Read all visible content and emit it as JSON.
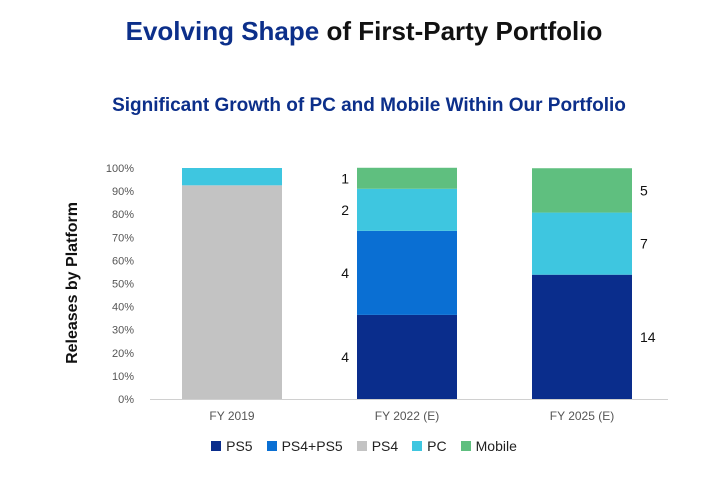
{
  "header": {
    "title_accent": "Evolving Shape",
    "title_rest": " of First-Party Portfolio"
  },
  "chart_data": {
    "type": "bar",
    "stacked": true,
    "title": "Significant Growth of PC and Mobile Within Our Portfolio",
    "ylabel": "Releases by Platform",
    "xlabel": "",
    "ylim": [
      0,
      100
    ],
    "yticks": [
      "0%",
      "10%",
      "20%",
      "30%",
      "40%",
      "50%",
      "60%",
      "70%",
      "80%",
      "90%",
      "100%"
    ],
    "categories": [
      "FY 2019",
      "FY 2022 (E)",
      "FY 2025 (E)"
    ],
    "legend_position": "bottom",
    "grid": false,
    "series": [
      {
        "name": "PS5",
        "color": "#0a2d8c",
        "values": [
          0,
          36.4,
          53.8
        ],
        "labels": [
          "",
          "4",
          "14"
        ]
      },
      {
        "name": "PS4+PS5",
        "color": "#0a6fd3",
        "values": [
          0,
          36.4,
          0
        ],
        "labels": [
          "",
          "4",
          ""
        ]
      },
      {
        "name": "PS4",
        "color": "#c3c3c3",
        "values": [
          92.5,
          0,
          0
        ],
        "labels": [
          "",
          "",
          ""
        ]
      },
      {
        "name": "PC",
        "color": "#3ec6e0",
        "values": [
          7.5,
          18.2,
          26.9
        ],
        "labels": [
          "",
          "2",
          "7"
        ]
      },
      {
        "name": "Mobile",
        "color": "#5fbf7f",
        "values": [
          0,
          9.1,
          19.2
        ],
        "labels": [
          "",
          "1",
          "5"
        ]
      }
    ],
    "label_side": [
      "",
      "left",
      "right"
    ]
  }
}
